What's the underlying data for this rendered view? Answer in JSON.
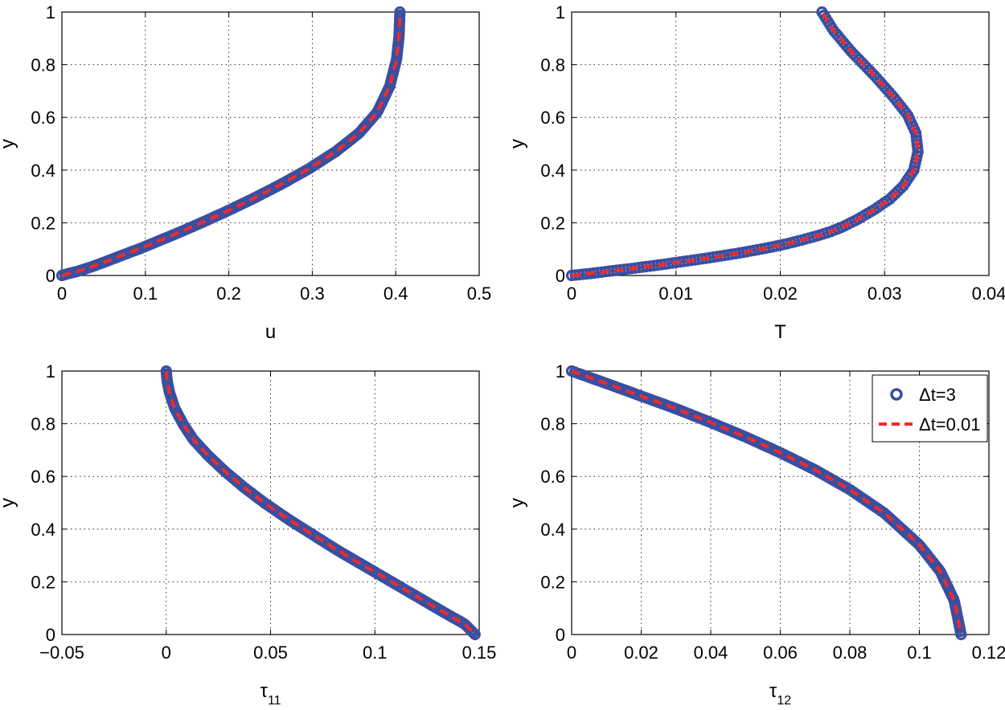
{
  "legend": {
    "entries": [
      "Δt=3",
      "Δt=0.01"
    ]
  },
  "colors": {
    "marker": "#3a4fa0",
    "line": "#ee2b2b"
  },
  "chart_data": [
    {
      "type": "line",
      "xlabel": "u",
      "xlabel_sub": "",
      "ylabel": "y",
      "xlim": [
        0,
        0.5
      ],
      "ylim": [
        0,
        1
      ],
      "xticks": [
        "0",
        "0.1",
        "0.2",
        "0.3",
        "0.4",
        "0.5"
      ],
      "yticks": [
        "0",
        "0.2",
        "0.4",
        "0.6",
        "0.8",
        "1"
      ],
      "grid": true,
      "series": [
        {
          "name": "Δt=3",
          "style": "circle-markers",
          "x": [
            0,
            0.009,
            0.018,
            0.028,
            0.04,
            0.052,
            0.065,
            0.08,
            0.096,
            0.115,
            0.138,
            0.165,
            0.195,
            0.228,
            0.262,
            0.296,
            0.328,
            0.356,
            0.378,
            0.393,
            0.401,
            0.404,
            0.405
          ],
          "y": [
            0,
            0.008,
            0.015,
            0.025,
            0.038,
            0.052,
            0.068,
            0.086,
            0.105,
            0.13,
            0.16,
            0.197,
            0.24,
            0.29,
            0.345,
            0.405,
            0.47,
            0.54,
            0.62,
            0.72,
            0.82,
            0.91,
            1.0
          ]
        },
        {
          "name": "Δt=0.01",
          "style": "dashed-line",
          "x": [
            0,
            0.009,
            0.018,
            0.028,
            0.04,
            0.052,
            0.065,
            0.08,
            0.096,
            0.115,
            0.138,
            0.165,
            0.195,
            0.228,
            0.262,
            0.296,
            0.328,
            0.356,
            0.378,
            0.393,
            0.401,
            0.404,
            0.405
          ],
          "y": [
            0,
            0.008,
            0.015,
            0.025,
            0.038,
            0.052,
            0.068,
            0.086,
            0.105,
            0.13,
            0.16,
            0.197,
            0.24,
            0.29,
            0.345,
            0.405,
            0.47,
            0.54,
            0.62,
            0.72,
            0.82,
            0.91,
            1.0
          ]
        }
      ]
    },
    {
      "type": "line",
      "xlabel": "T",
      "xlabel_sub": "",
      "ylabel": "y",
      "xlim": [
        0,
        0.04
      ],
      "ylim": [
        0,
        1
      ],
      "xticks": [
        "0",
        "0.01",
        "0.02",
        "0.03",
        "0.04"
      ],
      "yticks": [
        "0",
        "0.2",
        "0.4",
        "0.6",
        "0.8",
        "1"
      ],
      "grid": true,
      "series": [
        {
          "name": "Δt=3",
          "style": "circle-markers",
          "x": [
            0,
            0.0017,
            0.0033,
            0.005,
            0.0066,
            0.0082,
            0.0098,
            0.0114,
            0.013,
            0.0146,
            0.0162,
            0.0177,
            0.0192,
            0.0206,
            0.022,
            0.0234,
            0.0248,
            0.026,
            0.0275,
            0.029,
            0.0305,
            0.0318,
            0.0328,
            0.0332,
            0.033,
            0.0322,
            0.0308,
            0.029,
            0.0268,
            0.0251,
            0.024
          ],
          "y": [
            0,
            0.007,
            0.015,
            0.023,
            0.031,
            0.039,
            0.048,
            0.057,
            0.066,
            0.076,
            0.086,
            0.097,
            0.108,
            0.12,
            0.134,
            0.149,
            0.166,
            0.185,
            0.215,
            0.25,
            0.29,
            0.34,
            0.4,
            0.47,
            0.54,
            0.61,
            0.68,
            0.76,
            0.85,
            0.93,
            1.0
          ]
        },
        {
          "name": "Δt=0.01",
          "style": "dashed-line",
          "x": [
            0,
            0.0017,
            0.0033,
            0.005,
            0.0066,
            0.0082,
            0.0098,
            0.0114,
            0.013,
            0.0146,
            0.0162,
            0.0177,
            0.0192,
            0.0206,
            0.022,
            0.0234,
            0.0248,
            0.026,
            0.0275,
            0.029,
            0.0305,
            0.0318,
            0.0328,
            0.0332,
            0.033,
            0.0322,
            0.0308,
            0.029,
            0.0268,
            0.0251,
            0.024
          ],
          "y": [
            0,
            0.007,
            0.015,
            0.023,
            0.031,
            0.039,
            0.048,
            0.057,
            0.066,
            0.076,
            0.086,
            0.097,
            0.108,
            0.12,
            0.134,
            0.149,
            0.166,
            0.185,
            0.215,
            0.25,
            0.29,
            0.34,
            0.4,
            0.47,
            0.54,
            0.61,
            0.68,
            0.76,
            0.85,
            0.93,
            1.0
          ]
        }
      ]
    },
    {
      "type": "line",
      "xlabel": "τ",
      "xlabel_sub": "11",
      "ylabel": "y",
      "xlim": [
        -0.05,
        0.15
      ],
      "ylim": [
        0,
        1
      ],
      "xticks": [
        "−0.05",
        "0",
        "0.05",
        "0.1",
        "0.15"
      ],
      "yticks": [
        "0",
        "0.2",
        "0.4",
        "0.6",
        "0.8",
        "1"
      ],
      "grid": true,
      "series": [
        {
          "name": "Δt=3",
          "style": "circle-markers",
          "x": [
            0,
            0.0005,
            0.0015,
            0.004,
            0.008,
            0.013,
            0.02,
            0.028,
            0.037,
            0.047,
            0.058,
            0.07,
            0.082,
            0.095,
            0.108,
            0.121,
            0.134,
            0.143,
            0.148
          ],
          "y": [
            1.0,
            0.96,
            0.92,
            0.86,
            0.8,
            0.74,
            0.68,
            0.62,
            0.56,
            0.5,
            0.44,
            0.38,
            0.32,
            0.26,
            0.2,
            0.14,
            0.08,
            0.04,
            0
          ]
        },
        {
          "name": "Δt=0.01",
          "style": "dashed-line",
          "x": [
            0,
            0.0005,
            0.0015,
            0.004,
            0.008,
            0.013,
            0.02,
            0.028,
            0.037,
            0.047,
            0.058,
            0.07,
            0.082,
            0.095,
            0.108,
            0.121,
            0.134,
            0.143,
            0.148
          ],
          "y": [
            1.0,
            0.96,
            0.92,
            0.86,
            0.8,
            0.74,
            0.68,
            0.62,
            0.56,
            0.5,
            0.44,
            0.38,
            0.32,
            0.26,
            0.2,
            0.14,
            0.08,
            0.04,
            0
          ]
        }
      ]
    },
    {
      "type": "line",
      "xlabel": "τ",
      "xlabel_sub": "12",
      "ylabel": "y",
      "xlim": [
        0,
        0.12
      ],
      "ylim": [
        0,
        1
      ],
      "xticks": [
        "0",
        "0.02",
        "0.04",
        "0.06",
        "0.08",
        "0.1",
        "0.12"
      ],
      "yticks": [
        "0",
        "0.2",
        "0.4",
        "0.6",
        "0.8",
        "1"
      ],
      "grid": true,
      "legend": "top-right",
      "series": [
        {
          "name": "Δt=3",
          "style": "circle-markers",
          "x": [
            0,
            0.01,
            0.02,
            0.03,
            0.04,
            0.05,
            0.06,
            0.07,
            0.08,
            0.09,
            0.1,
            0.106,
            0.11,
            0.112
          ],
          "y": [
            1.0,
            0.953,
            0.905,
            0.857,
            0.805,
            0.75,
            0.69,
            0.625,
            0.55,
            0.46,
            0.34,
            0.24,
            0.13,
            0
          ]
        },
        {
          "name": "Δt=0.01",
          "style": "dashed-line",
          "x": [
            0,
            0.01,
            0.02,
            0.03,
            0.04,
            0.05,
            0.06,
            0.07,
            0.08,
            0.09,
            0.1,
            0.106,
            0.11,
            0.112
          ],
          "y": [
            1.0,
            0.953,
            0.905,
            0.857,
            0.805,
            0.75,
            0.69,
            0.625,
            0.55,
            0.46,
            0.34,
            0.24,
            0.13,
            0
          ]
        }
      ]
    }
  ]
}
